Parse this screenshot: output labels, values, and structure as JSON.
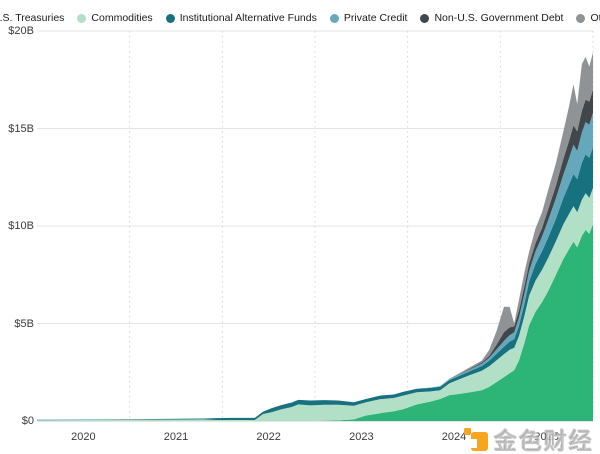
{
  "legend": {
    "items": [
      {
        "label": "U.S. Treasuries",
        "color": "#2cb577"
      },
      {
        "label": "Commodities",
        "color": "#b2e0c6"
      },
      {
        "label": "Institutional Alternative Funds",
        "color": "#17717f"
      },
      {
        "label": "Private Credit",
        "color": "#65a8bc"
      },
      {
        "label": "Non-U.S. Government Debt",
        "color": "#41464b"
      },
      {
        "label": "Others",
        "color": "#8f9396"
      }
    ]
  },
  "watermark": {
    "text": "金色财经",
    "logo_color": "#f6a51f"
  },
  "chart_data": {
    "type": "area",
    "stacked": true,
    "title": "",
    "xlabel": "",
    "ylabel": "",
    "legend_position": "top",
    "grid": {
      "horizontal": "solid",
      "vertical": "dashed"
    },
    "y_axis": {
      "range": [
        0,
        20
      ],
      "unit": "$B",
      "ticks": [
        0,
        5,
        10,
        15,
        20
      ],
      "tick_labels": [
        "$0",
        "$5B",
        "$10B",
        "$15B",
        "$20B"
      ]
    },
    "x_axis": {
      "range": [
        2020,
        2026
      ],
      "gridline_years": [
        2021,
        2022,
        2023,
        2024,
        2025,
        2026
      ],
      "tick_labels": [
        "2020",
        "2021",
        "2022",
        "2023",
        "2024",
        "2025"
      ],
      "tick_positions": [
        2020.5,
        2021.5,
        2022.5,
        2023.5,
        2024.5,
        2025.5
      ]
    },
    "x": [
      2020.0,
      2020.5,
      2021.0,
      2021.4,
      2021.8,
      2021.93,
      2022.1,
      2022.35,
      2022.44,
      2022.53,
      2022.64,
      2022.75,
      2022.82,
      2022.95,
      2023.1,
      2023.25,
      2023.42,
      2023.55,
      2023.7,
      2023.85,
      2023.95,
      2024.1,
      2024.25,
      2024.35,
      2024.45,
      2024.57,
      2024.68,
      2024.8,
      2024.88,
      2024.96,
      2025.04,
      2025.1,
      2025.15,
      2025.2,
      2025.26,
      2025.31,
      2025.38,
      2025.45,
      2025.52,
      2025.6,
      2025.68,
      2025.74,
      2025.79,
      2025.83,
      2025.88,
      2025.92,
      2025.96,
      2026.0
    ],
    "series": [
      {
        "name": "U.S. Treasuries",
        "color": "#2cb577",
        "values": [
          0,
          0,
          0,
          0,
          0,
          0,
          0,
          0,
          0,
          0,
          0,
          0,
          0,
          0,
          0.01,
          0.03,
          0.08,
          0.28,
          0.4,
          0.5,
          0.6,
          0.85,
          1.0,
          1.13,
          1.33,
          1.4,
          1.48,
          1.58,
          1.75,
          2.0,
          2.25,
          2.45,
          2.6,
          3.1,
          4.0,
          4.9,
          5.6,
          6.1,
          6.7,
          7.5,
          8.3,
          8.8,
          9.2,
          8.9,
          9.5,
          9.8,
          9.6,
          10.1
        ]
      },
      {
        "name": "Commodities",
        "color": "#b2e0c6",
        "values": [
          0.04,
          0.05,
          0.06,
          0.07,
          0.08,
          0.05,
          0.05,
          0.05,
          0.36,
          0.45,
          0.6,
          0.72,
          0.85,
          0.8,
          0.82,
          0.8,
          0.7,
          0.68,
          0.72,
          0.68,
          0.7,
          0.62,
          0.52,
          0.45,
          0.6,
          0.77,
          0.89,
          1.0,
          1.06,
          1.12,
          1.18,
          1.2,
          1.15,
          1.25,
          1.4,
          1.52,
          1.6,
          1.65,
          1.7,
          1.72,
          1.78,
          1.8,
          1.82,
          1.8,
          1.85,
          1.88,
          1.85,
          1.85
        ]
      },
      {
        "name": "Institutional Alternative Funds",
        "color": "#17717f",
        "values": [
          0.02,
          0.02,
          0.03,
          0.04,
          0.05,
          0.1,
          0.11,
          0.11,
          0.12,
          0.2,
          0.22,
          0.23,
          0.23,
          0.25,
          0.24,
          0.22,
          0.18,
          0.17,
          0.18,
          0.18,
          0.19,
          0.18,
          0.18,
          0.18,
          0.17,
          0.17,
          0.2,
          0.24,
          0.28,
          0.33,
          0.38,
          0.42,
          0.45,
          0.52,
          0.62,
          0.72,
          0.85,
          0.95,
          1.05,
          1.15,
          1.35,
          1.5,
          1.65,
          1.7,
          1.9,
          2.0,
          2.05,
          2.1
        ]
      },
      {
        "name": "Private Credit",
        "color": "#65a8bc",
        "values": [
          0,
          0,
          0,
          0,
          0,
          0,
          0,
          0,
          0,
          0,
          0,
          0,
          0,
          0,
          0,
          0,
          0,
          0,
          0,
          0,
          0,
          0,
          0.02,
          0.03,
          0.05,
          0.07,
          0.09,
          0.12,
          0.15,
          0.22,
          0.3,
          0.33,
          0.35,
          0.42,
          0.5,
          0.55,
          0.65,
          0.75,
          0.9,
          1.05,
          1.2,
          1.35,
          1.5,
          1.45,
          1.55,
          1.65,
          1.7,
          1.75
        ]
      },
      {
        "name": "Non-U.S. Government Debt",
        "color": "#41464b",
        "values": [
          0,
          0,
          0,
          0,
          0,
          0,
          0,
          0,
          0,
          0,
          0,
          0,
          0,
          0,
          0,
          0,
          0,
          0,
          0,
          0,
          0,
          0,
          0,
          0,
          0,
          0.02,
          0.04,
          0.06,
          0.1,
          0.25,
          0.45,
          0.4,
          0.3,
          0.35,
          0.4,
          0.38,
          0.42,
          0.45,
          0.55,
          0.65,
          0.8,
          0.9,
          1.0,
          1.0,
          1.1,
          1.15,
          1.18,
          1.2
        ]
      },
      {
        "name": "Others",
        "color": "#8f9396",
        "values": [
          0,
          0,
          0,
          0,
          0,
          0,
          0,
          0,
          0,
          0,
          0,
          0,
          0,
          0,
          0,
          0,
          0,
          0,
          0,
          0,
          0,
          0,
          0,
          0,
          0.02,
          0.05,
          0.08,
          0.1,
          0.3,
          0.7,
          1.3,
          1.05,
          0.15,
          0.55,
          0.7,
          0.6,
          0.75,
          0.8,
          1.0,
          1.15,
          1.4,
          1.75,
          2.1,
          1.4,
          2.4,
          2.2,
          1.8,
          1.9
        ]
      }
    ]
  }
}
